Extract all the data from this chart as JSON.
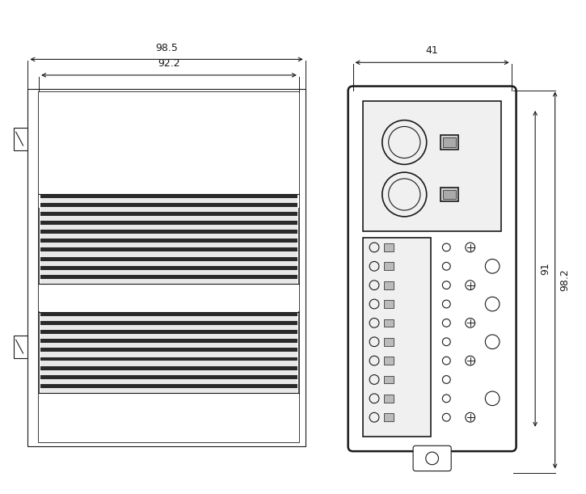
{
  "bg_color": "#ffffff",
  "line_color": "#1a1a1a",
  "fig_width": 7.25,
  "fig_height": 6.11,
  "dpi": 100
}
